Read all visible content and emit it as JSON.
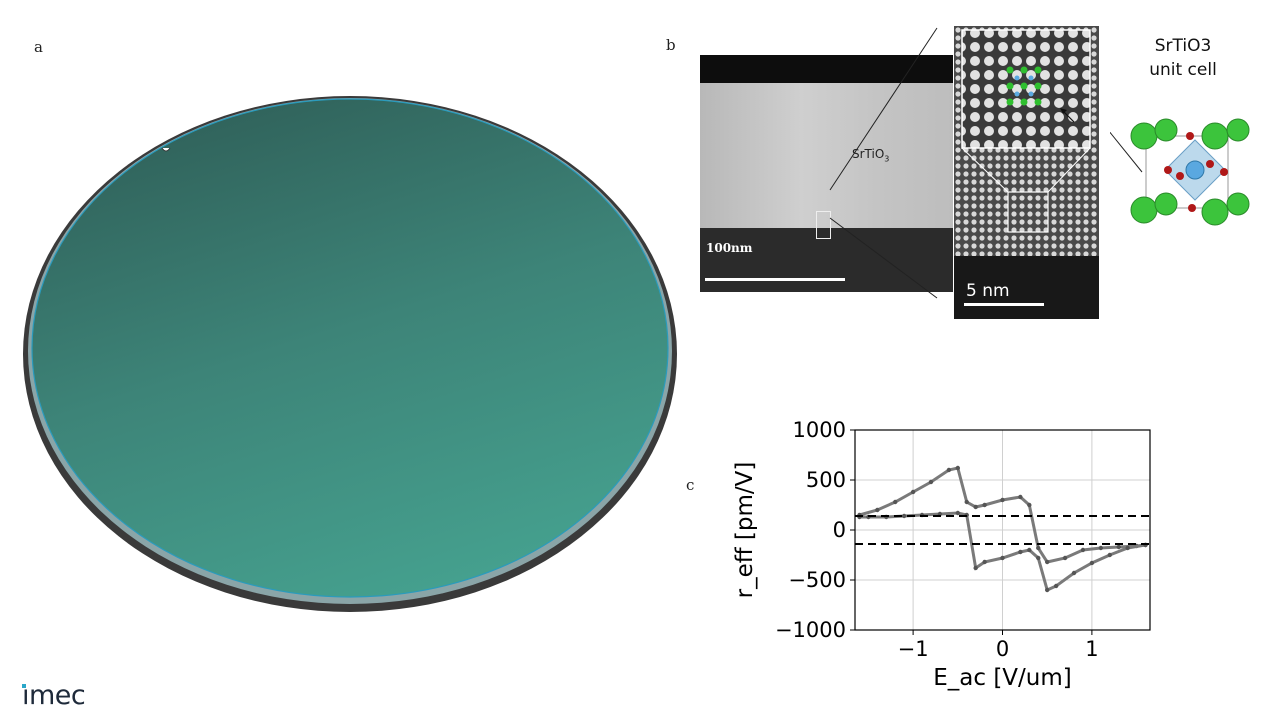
{
  "panels": {
    "a": "a",
    "b": "b",
    "c": "c"
  },
  "tem": {
    "film_label": "SrTiO3",
    "film_label_sub": "3",
    "film_label_main": "SrTiO",
    "scale_left": "100nm",
    "scale_right": "5 nm"
  },
  "unit_cell": {
    "title_line1": "SrTiO3",
    "title_line2": "unit cell"
  },
  "logo": {
    "text": "ımec"
  },
  "colors": {
    "wafer": "#3f8f80",
    "wafer_dark": "#2f5f58",
    "sr_atom": "#3cc43c",
    "ti_atom": "#5aa8e0",
    "o_atom": "#b01818",
    "series": "#7a7a7a"
  },
  "chart_data": {
    "type": "line",
    "xlabel": "E_ac [V/um]",
    "ylabel": "r_eff [pm/V]",
    "xlim": [
      -1.65,
      1.65
    ],
    "ylim": [
      -1000,
      1000
    ],
    "xticks": [
      -1,
      0,
      1
    ],
    "xtick_labels": [
      "−1",
      "0",
      "1"
    ],
    "yticks": [
      1000,
      500,
      0,
      -500,
      -1000
    ],
    "ytick_labels": [
      "1000",
      "500",
      "0",
      "−500",
      "−1000"
    ],
    "grid": true,
    "series": [
      {
        "x": [
          -1.6,
          -1.4,
          -1.2,
          -1.0,
          -0.8,
          -0.6,
          -0.5,
          -0.4,
          -0.3,
          -0.2,
          0.0,
          0.2,
          0.3,
          0.4,
          0.5,
          0.7,
          0.9,
          1.1,
          1.3,
          1.5,
          1.6
        ],
        "values": [
          150,
          200,
          280,
          380,
          480,
          600,
          620,
          280,
          230,
          250,
          300,
          330,
          250,
          -180,
          -320,
          -280,
          -200,
          -180,
          -170,
          -160,
          -150
        ]
      },
      {
        "x": [
          1.6,
          1.4,
          1.2,
          1.0,
          0.8,
          0.6,
          0.5,
          0.4,
          0.3,
          0.2,
          0.0,
          -0.2,
          -0.3,
          -0.4,
          -0.5,
          -0.7,
          -0.9,
          -1.1,
          -1.3,
          -1.5,
          -1.6
        ],
        "values": [
          -150,
          -180,
          -250,
          -330,
          -430,
          -560,
          -600,
          -280,
          -200,
          -220,
          -280,
          -320,
          -380,
          150,
          170,
          160,
          150,
          140,
          130,
          130,
          130
        ]
      }
    ],
    "reference_lines": [
      140,
      -140
    ]
  }
}
